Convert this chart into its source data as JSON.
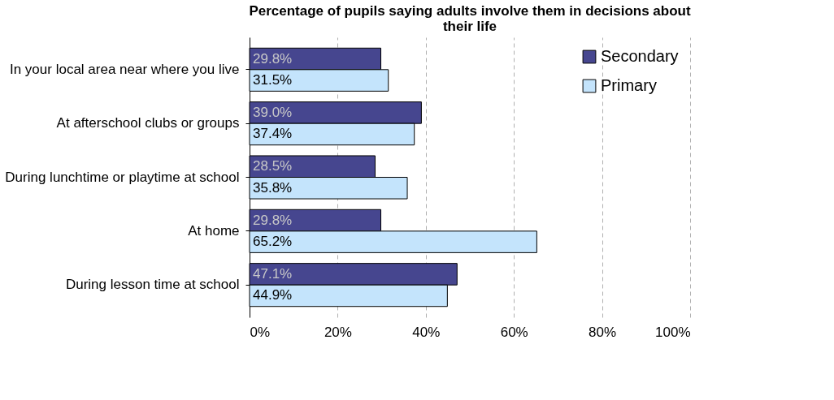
{
  "chart_data": {
    "type": "bar",
    "orientation": "horizontal",
    "title": "Percentage of pupils saying adults involve them in decisions about their life",
    "categories": [
      "In your local area near where you live",
      "At afterschool clubs or groups",
      "During lunchtime or playtime at school",
      "At home",
      "During lesson time at school"
    ],
    "series": [
      {
        "name": "Secondary",
        "color": "#46468f",
        "values": [
          29.8,
          39.0,
          28.5,
          29.8,
          47.1
        ],
        "value_labels": [
          "29.8%",
          "39.0%",
          "28.5%",
          "29.8%",
          "47.1%"
        ]
      },
      {
        "name": "Primary",
        "color": "#c4e4fc",
        "values": [
          31.5,
          37.4,
          35.8,
          65.2,
          44.9
        ],
        "value_labels": [
          "31.5%",
          "37.4%",
          "35.8%",
          "65.2%",
          "44.9%"
        ]
      }
    ],
    "xlim": [
      0,
      100
    ],
    "xticks": [
      {
        "value": 0,
        "label": "0%"
      },
      {
        "value": 20,
        "label": "20%"
      },
      {
        "value": 40,
        "label": "40%"
      },
      {
        "value": 60,
        "label": "60%"
      },
      {
        "value": 80,
        "label": "80%"
      },
      {
        "value": 100,
        "label": "100%"
      }
    ],
    "grid": "x",
    "legend": "top right"
  }
}
